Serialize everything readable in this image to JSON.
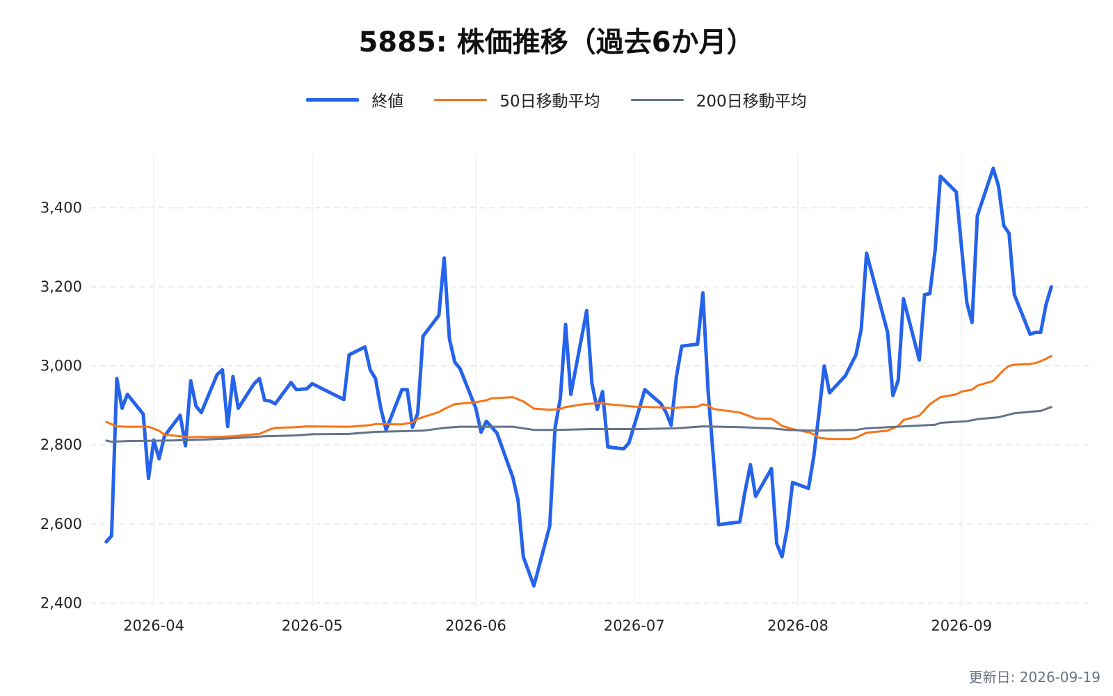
{
  "colors": {
    "close": "#2563eb",
    "ma50": "#f97316",
    "ma200": "#64748b",
    "grid": "#e5e7eb"
  },
  "legend": [
    {
      "label": "終値",
      "color": "#2563eb",
      "width": 5
    },
    {
      "label": "50日移動平均",
      "color": "#f97316",
      "width": 3
    },
    {
      "label": "200日移動平均",
      "color": "#64748b",
      "width": 3
    }
  ],
  "footer": {
    "updated": "更新日: 2026-09-19"
  },
  "chart_data": {
    "type": "line",
    "title": "5885: 株価推移（過去6か月）",
    "xlabel": "",
    "ylabel": "",
    "xlim": [
      "2026-03-20",
      "2026-09-26"
    ],
    "ylim": [
      2390,
      3535
    ],
    "y_ticks": [
      2400,
      2600,
      2800,
      3000,
      3200,
      3400
    ],
    "x_ticks": [
      "2026-04-01",
      "2026-05-01",
      "2026-06-01",
      "2026-07-01",
      "2026-08-01",
      "2026-09-01"
    ],
    "x_tick_labels": [
      "2026-04",
      "2026-05",
      "2026-06",
      "2026-07",
      "2026-08",
      "2026-09"
    ],
    "grid": true,
    "legend_position": "top-center",
    "series": [
      {
        "name": "終値",
        "points": [
          [
            "2026-03-23",
            2555
          ],
          [
            "2026-03-24",
            2570
          ],
          [
            "2026-03-25",
            2968
          ],
          [
            "2026-03-26",
            2893
          ],
          [
            "2026-03-27",
            2928
          ],
          [
            "2026-03-30",
            2878
          ],
          [
            "2026-03-31",
            2715
          ],
          [
            "2026-04-01",
            2812
          ],
          [
            "2026-04-02",
            2765
          ],
          [
            "2026-04-03",
            2822
          ],
          [
            "2026-04-06",
            2875
          ],
          [
            "2026-04-07",
            2798
          ],
          [
            "2026-04-08",
            2962
          ],
          [
            "2026-04-09",
            2898
          ],
          [
            "2026-04-10",
            2882
          ],
          [
            "2026-04-13",
            2978
          ],
          [
            "2026-04-14",
            2990
          ],
          [
            "2026-04-15",
            2847
          ],
          [
            "2026-04-16",
            2973
          ],
          [
            "2026-04-17",
            2893
          ],
          [
            "2026-04-20",
            2955
          ],
          [
            "2026-04-21",
            2968
          ],
          [
            "2026-04-22",
            2913
          ],
          [
            "2026-04-23",
            2911
          ],
          [
            "2026-04-24",
            2904
          ],
          [
            "2026-04-27",
            2958
          ],
          [
            "2026-04-28",
            2940
          ],
          [
            "2026-04-30",
            2942
          ],
          [
            "2026-05-01",
            2955
          ],
          [
            "2026-05-07",
            2915
          ],
          [
            "2026-05-08",
            3028
          ],
          [
            "2026-05-11",
            3048
          ],
          [
            "2026-05-12",
            2990
          ],
          [
            "2026-05-13",
            2968
          ],
          [
            "2026-05-14",
            2893
          ],
          [
            "2026-05-15",
            2838
          ],
          [
            "2026-05-18",
            2940
          ],
          [
            "2026-05-19",
            2940
          ],
          [
            "2026-05-20",
            2845
          ],
          [
            "2026-05-21",
            2880
          ],
          [
            "2026-05-22",
            3075
          ],
          [
            "2026-05-25",
            3128
          ],
          [
            "2026-05-26",
            3273
          ],
          [
            "2026-05-27",
            3068
          ],
          [
            "2026-05-28",
            3010
          ],
          [
            "2026-05-29",
            2993
          ],
          [
            "2026-06-01",
            2893
          ],
          [
            "2026-06-02",
            2832
          ],
          [
            "2026-06-03",
            2860
          ],
          [
            "2026-06-05",
            2830
          ],
          [
            "2026-06-08",
            2718
          ],
          [
            "2026-06-09",
            2660
          ],
          [
            "2026-06-10",
            2517
          ],
          [
            "2026-06-12",
            2443
          ],
          [
            "2026-06-15",
            2595
          ],
          [
            "2026-06-16",
            2843
          ],
          [
            "2026-06-17",
            2918
          ],
          [
            "2026-06-18",
            3105
          ],
          [
            "2026-06-19",
            2928
          ],
          [
            "2026-06-22",
            3140
          ],
          [
            "2026-06-23",
            2955
          ],
          [
            "2026-06-24",
            2890
          ],
          [
            "2026-06-25",
            2935
          ],
          [
            "2026-06-26",
            2795
          ],
          [
            "2026-06-29",
            2790
          ],
          [
            "2026-06-30",
            2805
          ],
          [
            "2026-07-02",
            2893
          ],
          [
            "2026-07-03",
            2940
          ],
          [
            "2026-07-06",
            2905
          ],
          [
            "2026-07-07",
            2883
          ],
          [
            "2026-07-08",
            2850
          ],
          [
            "2026-07-09",
            2973
          ],
          [
            "2026-07-10",
            3050
          ],
          [
            "2026-07-13",
            3055
          ],
          [
            "2026-07-14",
            3185
          ],
          [
            "2026-07-15",
            2935
          ],
          [
            "2026-07-17",
            2598
          ],
          [
            "2026-07-21",
            2605
          ],
          [
            "2026-07-22",
            2683
          ],
          [
            "2026-07-23",
            2750
          ],
          [
            "2026-07-24",
            2670
          ],
          [
            "2026-07-27",
            2740
          ],
          [
            "2026-07-28",
            2550
          ],
          [
            "2026-07-29",
            2517
          ],
          [
            "2026-07-30",
            2590
          ],
          [
            "2026-07-31",
            2705
          ],
          [
            "2026-08-03",
            2690
          ],
          [
            "2026-08-04",
            2770
          ],
          [
            "2026-08-05",
            2880
          ],
          [
            "2026-08-06",
            3000
          ],
          [
            "2026-08-07",
            2932
          ],
          [
            "2026-08-10",
            2975
          ],
          [
            "2026-08-12",
            3028
          ],
          [
            "2026-08-13",
            3093
          ],
          [
            "2026-08-14",
            3285
          ],
          [
            "2026-08-18",
            3085
          ],
          [
            "2026-08-19",
            2925
          ],
          [
            "2026-08-20",
            2963
          ],
          [
            "2026-08-21",
            3170
          ],
          [
            "2026-08-24",
            3015
          ],
          [
            "2026-08-25",
            3180
          ],
          [
            "2026-08-26",
            3183
          ],
          [
            "2026-08-27",
            3293
          ],
          [
            "2026-08-28",
            3480
          ],
          [
            "2026-08-31",
            3440
          ],
          [
            "2026-09-02",
            3160
          ],
          [
            "2026-09-03",
            3110
          ],
          [
            "2026-09-04",
            3380
          ],
          [
            "2026-09-07",
            3500
          ],
          [
            "2026-09-08",
            3455
          ],
          [
            "2026-09-09",
            3355
          ],
          [
            "2026-09-10",
            3335
          ],
          [
            "2026-09-11",
            3180
          ],
          [
            "2026-09-14",
            3080
          ],
          [
            "2026-09-15",
            3085
          ],
          [
            "2026-09-16",
            3085
          ],
          [
            "2026-09-17",
            3155
          ],
          [
            "2026-09-18",
            3200
          ]
        ]
      },
      {
        "name": "50日移動平均",
        "points": [
          [
            "2026-03-23",
            2858
          ],
          [
            "2026-03-25",
            2847
          ],
          [
            "2026-03-27",
            2846
          ],
          [
            "2026-03-31",
            2846
          ],
          [
            "2026-04-02",
            2836
          ],
          [
            "2026-04-03",
            2826
          ],
          [
            "2026-04-06",
            2822
          ],
          [
            "2026-04-08",
            2819
          ],
          [
            "2026-04-09",
            2820
          ],
          [
            "2026-04-13",
            2820
          ],
          [
            "2026-04-16",
            2822
          ],
          [
            "2026-04-21",
            2828
          ],
          [
            "2026-04-23",
            2839
          ],
          [
            "2026-04-24",
            2843
          ],
          [
            "2026-04-28",
            2845
          ],
          [
            "2026-04-30",
            2847
          ],
          [
            "2026-05-08",
            2846
          ],
          [
            "2026-05-12",
            2850
          ],
          [
            "2026-05-13",
            2853
          ],
          [
            "2026-05-18",
            2852
          ],
          [
            "2026-05-20",
            2857
          ],
          [
            "2026-05-21",
            2866
          ],
          [
            "2026-05-25",
            2883
          ],
          [
            "2026-05-26",
            2891
          ],
          [
            "2026-05-28",
            2903
          ],
          [
            "2026-06-01",
            2908
          ],
          [
            "2026-06-03",
            2913
          ],
          [
            "2026-06-04",
            2918
          ],
          [
            "2026-06-08",
            2921
          ],
          [
            "2026-06-10",
            2910
          ],
          [
            "2026-06-12",
            2892
          ],
          [
            "2026-06-15",
            2889
          ],
          [
            "2026-06-17",
            2891
          ],
          [
            "2026-06-18",
            2896
          ],
          [
            "2026-06-19",
            2898
          ],
          [
            "2026-06-22",
            2904
          ],
          [
            "2026-06-25",
            2906
          ],
          [
            "2026-06-26",
            2903
          ],
          [
            "2026-07-01",
            2897
          ],
          [
            "2026-07-06",
            2895
          ],
          [
            "2026-07-08",
            2893
          ],
          [
            "2026-07-10",
            2895
          ],
          [
            "2026-07-13",
            2897
          ],
          [
            "2026-07-14",
            2903
          ],
          [
            "2026-07-15",
            2900
          ],
          [
            "2026-07-16",
            2891
          ],
          [
            "2026-07-21",
            2882
          ],
          [
            "2026-07-24",
            2867
          ],
          [
            "2026-07-27",
            2866
          ],
          [
            "2026-07-28",
            2858
          ],
          [
            "2026-07-29",
            2848
          ],
          [
            "2026-07-31",
            2840
          ],
          [
            "2026-08-03",
            2832
          ],
          [
            "2026-08-04",
            2827
          ],
          [
            "2026-08-05",
            2818
          ],
          [
            "2026-08-07",
            2815
          ],
          [
            "2026-08-11",
            2815
          ],
          [
            "2026-08-12",
            2818
          ],
          [
            "2026-08-13",
            2825
          ],
          [
            "2026-08-14",
            2831
          ],
          [
            "2026-08-18",
            2836
          ],
          [
            "2026-08-20",
            2848
          ],
          [
            "2026-08-21",
            2863
          ],
          [
            "2026-08-24",
            2874
          ],
          [
            "2026-08-25",
            2888
          ],
          [
            "2026-08-26",
            2903
          ],
          [
            "2026-08-28",
            2921
          ],
          [
            "2026-08-31",
            2928
          ],
          [
            "2026-09-01",
            2935
          ],
          [
            "2026-09-03",
            2940
          ],
          [
            "2026-09-04",
            2950
          ],
          [
            "2026-09-07",
            2962
          ],
          [
            "2026-09-08",
            2976
          ],
          [
            "2026-09-09",
            2990
          ],
          [
            "2026-09-10",
            3000
          ],
          [
            "2026-09-11",
            3003
          ],
          [
            "2026-09-14",
            3005
          ],
          [
            "2026-09-15",
            3007
          ],
          [
            "2026-09-16",
            3012
          ],
          [
            "2026-09-17",
            3018
          ],
          [
            "2026-09-18",
            3025
          ]
        ]
      },
      {
        "name": "200日移動平均",
        "points": [
          [
            "2026-03-23",
            2811
          ],
          [
            "2026-03-24",
            2808
          ],
          [
            "2026-03-27",
            2810
          ],
          [
            "2026-04-03",
            2811
          ],
          [
            "2026-04-10",
            2813
          ],
          [
            "2026-04-16",
            2817
          ],
          [
            "2026-04-22",
            2822
          ],
          [
            "2026-04-28",
            2824
          ],
          [
            "2026-05-01",
            2827
          ],
          [
            "2026-05-08",
            2828
          ],
          [
            "2026-05-13",
            2833
          ],
          [
            "2026-05-22",
            2836
          ],
          [
            "2026-05-26",
            2843
          ],
          [
            "2026-05-29",
            2846
          ],
          [
            "2026-06-03",
            2846
          ],
          [
            "2026-06-08",
            2846
          ],
          [
            "2026-06-12",
            2838
          ],
          [
            "2026-06-16",
            2838
          ],
          [
            "2026-06-23",
            2840
          ],
          [
            "2026-07-02",
            2840
          ],
          [
            "2026-07-09",
            2842
          ],
          [
            "2026-07-14",
            2847
          ],
          [
            "2026-07-21",
            2845
          ],
          [
            "2026-07-27",
            2842
          ],
          [
            "2026-07-30",
            2838
          ],
          [
            "2026-08-04",
            2836
          ],
          [
            "2026-08-12",
            2838
          ],
          [
            "2026-08-14",
            2842
          ],
          [
            "2026-08-21",
            2847
          ],
          [
            "2026-08-27",
            2851
          ],
          [
            "2026-08-28",
            2856
          ],
          [
            "2026-09-02",
            2860
          ],
          [
            "2026-09-04",
            2865
          ],
          [
            "2026-09-08",
            2870
          ],
          [
            "2026-09-11",
            2880
          ],
          [
            "2026-09-14",
            2884
          ],
          [
            "2026-09-16",
            2886
          ],
          [
            "2026-09-18",
            2896
          ]
        ]
      }
    ]
  }
}
